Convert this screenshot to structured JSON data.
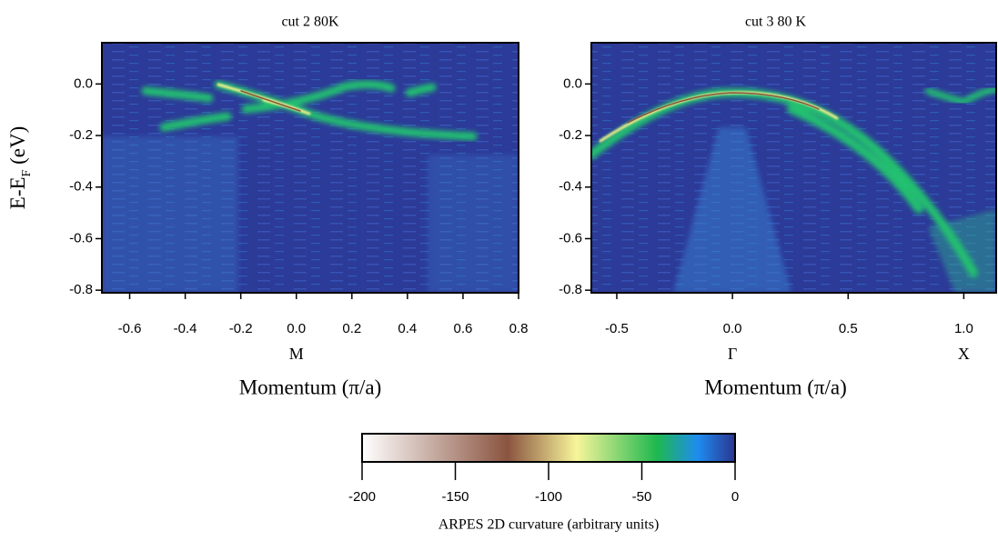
{
  "chart_data": [
    {
      "type": "heatmap",
      "title": "cut 2 80K",
      "xlim": [
        -0.7,
        0.8
      ],
      "xticks": [
        -0.6,
        -0.4,
        -0.2,
        {
          "value": 0,
          "label": "0.0"
        },
        0.2,
        0.4,
        0.6,
        0.8
      ],
      "ylim": [
        -0.81,
        0.16
      ],
      "yticks": [
        -0.8,
        -0.6,
        -0.4,
        -0.2,
        {
          "value": 0,
          "label": "0.0"
        }
      ],
      "point_labels": [
        {
          "value": 0,
          "label": "M"
        }
      ],
      "xlabel": "Momentum (π/a)",
      "ylabel": [
        "E-E",
        "F",
        " (eV)"
      ]
    },
    {
      "type": "heatmap",
      "title": "cut 3 80 K",
      "xlim": [
        -0.61,
        1.14
      ],
      "xticks": [
        -0.5,
        {
          "value": 0,
          "label": "0.0"
        },
        0.5,
        {
          "value": 1,
          "label": "1.0"
        }
      ],
      "ylim": [
        -0.81,
        0.16
      ],
      "yticks": [
        -0.8,
        -0.6,
        -0.4,
        -0.2,
        {
          "value": 0,
          "label": "0.0"
        }
      ],
      "point_labels": [
        {
          "value": 0,
          "label": "Γ"
        },
        {
          "value": 1,
          "label": "X"
        }
      ],
      "xlabel": "Momentum (π/a)"
    },
    {
      "type": "colorbar",
      "xlim": [
        -200,
        0
      ],
      "xticks": [
        -200,
        -150,
        -100,
        -50,
        0
      ],
      "label": "ARPES 2D curvature (arbitrary units)",
      "stops": [
        {
          "value": -200,
          "color": "#ffffff"
        },
        {
          "value": -122,
          "color": "#8a5440"
        },
        {
          "value": -85,
          "color": "#f7f59a"
        },
        {
          "value": -42,
          "color": "#1fb84f"
        },
        {
          "value": -20,
          "color": "#1e8cf0"
        },
        {
          "value": 0,
          "color": "#2b3590"
        }
      ]
    }
  ]
}
